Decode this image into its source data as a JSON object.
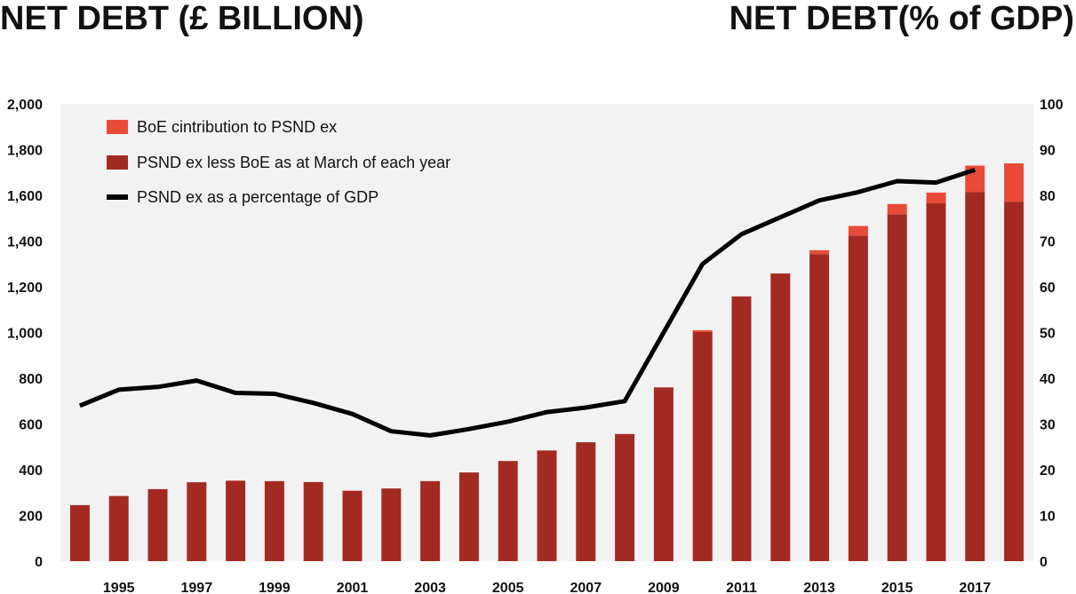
{
  "chart_data": {
    "type": "bar",
    "title_left": "NET DEBT (£ BILLION)",
    "title_right": "NET DEBT(% of GDP)",
    "colors": {
      "boe": "#E84B37",
      "psnd": "#A32A22",
      "line": "#000000",
      "plot_bg": "#F2F2F2"
    },
    "years": [
      1994,
      1995,
      1996,
      1997,
      1998,
      1999,
      2000,
      2001,
      2002,
      2003,
      2004,
      2005,
      2006,
      2007,
      2008,
      2009,
      2010,
      2011,
      2012,
      2013,
      2014,
      2015,
      2016,
      2017,
      2018
    ],
    "x_tick_labels": [
      "1995",
      "1997",
      "1999",
      "2001",
      "2003",
      "2005",
      "2007",
      "2009",
      "2011",
      "2013",
      "2015",
      "2017"
    ],
    "ylim_left": [
      0,
      2000
    ],
    "y_ticks_left": [
      "0",
      "200",
      "400",
      "600",
      "800",
      "1,000",
      "1,200",
      "1,400",
      "1,600",
      "1,800",
      "2,000"
    ],
    "ylim_right": [
      0,
      100
    ],
    "y_ticks_right": [
      "0",
      "10",
      "20",
      "30",
      "40",
      "50",
      "60",
      "70",
      "80",
      "90",
      "100"
    ],
    "series": [
      {
        "name": "PSND ex less BoE as at March of each year",
        "kind": "bar",
        "values": [
          245,
          285,
          315,
          345,
          352,
          350,
          346,
          308,
          318,
          350,
          388,
          438,
          484,
          520,
          556,
          760,
          1002,
          1158,
          1258,
          1343,
          1424,
          1517,
          1565,
          1615,
          1572
        ]
      },
      {
        "name": "BoE cintribution to PSND ex",
        "kind": "bar-stacked",
        "values": [
          0,
          0,
          0,
          0,
          0,
          0,
          0,
          0,
          0,
          0,
          0,
          0,
          0,
          0,
          0,
          0,
          8,
          0,
          0,
          17,
          42,
          45,
          47,
          115,
          168
        ]
      },
      {
        "name": "PSND ex as a percentage of GDP",
        "kind": "line",
        "axis": "right",
        "values": [
          34.0,
          37.5,
          38.1,
          39.5,
          36.8,
          36.6,
          34.6,
          32.2,
          28.4,
          27.5,
          28.9,
          30.5,
          32.6,
          33.6,
          35.0,
          50.0,
          65.0,
          71.5,
          75.2,
          78.9,
          80.7,
          83.1,
          82.8,
          85.6,
          null
        ]
      }
    ],
    "legend": [
      {
        "label": "BoE cintribution to PSND ex",
        "marker": "square"
      },
      {
        "label": "PSND ex less BoE as at March of each year",
        "marker": "square"
      },
      {
        "label": "PSND ex as a percentage of GDP",
        "marker": "line"
      }
    ],
    "legend_position": "top-left",
    "grid": false
  }
}
